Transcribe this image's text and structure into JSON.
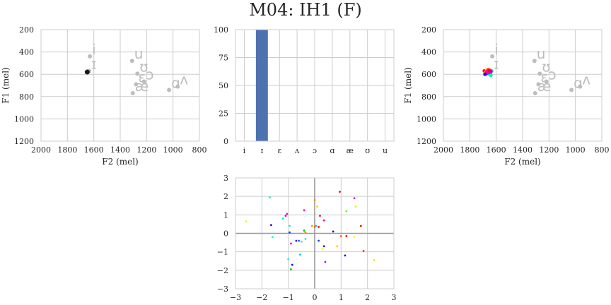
{
  "title": "M04: IH1 (F)",
  "colors": {
    "grid": "#cccccc",
    "frame": "#cccccc",
    "bar": "#4c72b0",
    "vowel": "#bdbdbd",
    "target": "#1a1a1a",
    "zero_line": "#999999"
  },
  "chart_data": [
    {
      "type": "scatter",
      "xlabel": "F2 (mel)",
      "ylabel": "F1 (mel)",
      "xlim": [
        2000,
        800
      ],
      "ylim": [
        1200,
        200
      ],
      "xticks": [
        "2000",
        "1800",
        "1600",
        "1400",
        "1200",
        "1000",
        "800"
      ],
      "yticks": [
        "200",
        "400",
        "600",
        "800",
        "1000",
        "1200"
      ],
      "grid": true,
      "vowels": [
        {
          "label": "i",
          "f2": 1630,
          "f1": 440
        },
        {
          "label": "ɪ",
          "f2": 1635,
          "f1": 570
        },
        {
          "label": "u",
          "f2": 1310,
          "f1": 480
        },
        {
          "label": "ʊ",
          "f2": 1270,
          "f1": 595
        },
        {
          "label": "ɛ",
          "f2": 1280,
          "f1": 690
        },
        {
          "label": "ɔ",
          "f2": 1220,
          "f1": 665
        },
        {
          "label": "æ",
          "f2": 1305,
          "f1": 770
        },
        {
          "label": "ɑ",
          "f2": 1030,
          "f1": 740
        },
        {
          "label": "ʌ",
          "f2": 965,
          "f1": 710
        }
      ],
      "target": [
        {
          "f2": 1650,
          "f1": 580
        }
      ]
    },
    {
      "type": "bar",
      "categories": [
        "i",
        "ɪ",
        "ɛ",
        "ʌ",
        "ɔ",
        "ɑ",
        "æ",
        "ʊ",
        "u"
      ],
      "values": [
        0,
        100,
        0,
        0,
        0,
        0,
        0,
        0,
        0
      ],
      "ylim": [
        0,
        100
      ],
      "yticks": [
        "0",
        "25",
        "50",
        "75",
        "100"
      ],
      "grid": true
    },
    {
      "type": "scatter",
      "xlabel": "F2 (mel)",
      "ylabel": "F1 (mel)",
      "xlim": [
        2000,
        800
      ],
      "ylim": [
        1200,
        200
      ],
      "xticks": [
        "2000",
        "1800",
        "1600",
        "1400",
        "1200",
        "1000",
        "800"
      ],
      "yticks": [
        "200",
        "400",
        "600",
        "800",
        "1000",
        "1200"
      ],
      "grid": true,
      "vowels": [
        {
          "label": "i",
          "f2": 1630,
          "f1": 440
        },
        {
          "label": "ɪ",
          "f2": 1635,
          "f1": 570
        },
        {
          "label": "u",
          "f2": 1310,
          "f1": 480
        },
        {
          "label": "ʊ",
          "f2": 1270,
          "f1": 595
        },
        {
          "label": "ɛ",
          "f2": 1280,
          "f1": 690
        },
        {
          "label": "ɔ",
          "f2": 1220,
          "f1": 665
        },
        {
          "label": "æ",
          "f2": 1305,
          "f1": 770
        },
        {
          "label": "ɑ",
          "f2": 1030,
          "f1": 740
        },
        {
          "label": "ʌ",
          "f2": 965,
          "f1": 710
        }
      ],
      "samples": [
        {
          "f2": 1690,
          "f1": 570,
          "color": "#ff0000"
        },
        {
          "f2": 1680,
          "f1": 580,
          "color": "#ff8800"
        },
        {
          "f2": 1670,
          "f1": 560,
          "color": "#ffcc00"
        },
        {
          "f2": 1660,
          "f1": 590,
          "color": "#00cc66"
        },
        {
          "f2": 1650,
          "f1": 600,
          "color": "#00ddee"
        },
        {
          "f2": 1640,
          "f1": 575,
          "color": "#0044ff"
        },
        {
          "f2": 1675,
          "f1": 595,
          "color": "#8800ff"
        },
        {
          "f2": 1665,
          "f1": 585,
          "color": "#ff00aa"
        },
        {
          "f2": 1655,
          "f1": 570,
          "color": "#ff0066"
        },
        {
          "f2": 1645,
          "f1": 590,
          "color": "#cc00ff"
        },
        {
          "f2": 1685,
          "f1": 600,
          "color": "#3300ff"
        },
        {
          "f2": 1660,
          "f1": 560,
          "color": "#ff3300"
        },
        {
          "f2": 1640,
          "f1": 610,
          "color": "#00ff99"
        },
        {
          "f2": 1670,
          "f1": 575,
          "color": "#ff0099"
        },
        {
          "f2": 1650,
          "f1": 565,
          "color": "#ff0033"
        }
      ]
    },
    {
      "type": "scatter",
      "xlim": [
        -3,
        3
      ],
      "ylim": [
        -3,
        3
      ],
      "xticks": [
        "−3",
        "−2",
        "−1",
        "0",
        "1",
        "2",
        "3"
      ],
      "yticks": [
        "−3",
        "−2",
        "−1",
        "0",
        "1",
        "2",
        "3"
      ],
      "grid": true,
      "points": [
        {
          "x": -2.6,
          "y": 0.65,
          "color": "#eeff00"
        },
        {
          "x": -1.7,
          "y": 1.95,
          "color": "#00ffcc"
        },
        {
          "x": -1.65,
          "y": 0.45,
          "color": "#0000ff"
        },
        {
          "x": -1.6,
          "y": -0.2,
          "color": "#00ffcc"
        },
        {
          "x": -1.2,
          "y": 0.8,
          "color": "#00ffcc"
        },
        {
          "x": -1.1,
          "y": 0.95,
          "color": "#cc00ff"
        },
        {
          "x": -1.05,
          "y": 1.05,
          "color": "#ff00aa"
        },
        {
          "x": -1.0,
          "y": -1.4,
          "color": "#00ffcc"
        },
        {
          "x": -0.95,
          "y": 0.05,
          "color": "#0044ff"
        },
        {
          "x": -0.95,
          "y": 0.4,
          "color": "#00ffcc"
        },
        {
          "x": -0.9,
          "y": -0.55,
          "color": "#cc00ff"
        },
        {
          "x": -0.9,
          "y": -1.95,
          "color": "#00cc00"
        },
        {
          "x": -0.85,
          "y": -1.7,
          "color": "#0000ff"
        },
        {
          "x": -0.7,
          "y": -0.4,
          "color": "#3300ff"
        },
        {
          "x": -0.6,
          "y": -0.4,
          "color": "#0066ff"
        },
        {
          "x": -0.55,
          "y": -1.15,
          "color": "#00ccff"
        },
        {
          "x": -0.5,
          "y": -0.45,
          "color": "#00ffcc"
        },
        {
          "x": -0.4,
          "y": 1.25,
          "color": "#ff0099"
        },
        {
          "x": -0.4,
          "y": 0.15,
          "color": "#00cc00"
        },
        {
          "x": -0.35,
          "y": -0.3,
          "color": "#00ffcc"
        },
        {
          "x": -0.35,
          "y": 0.05,
          "color": "#ff8800"
        },
        {
          "x": -0.1,
          "y": 0.4,
          "color": "#ccaa00"
        },
        {
          "x": 0.0,
          "y": 1.8,
          "color": "#ff8800"
        },
        {
          "x": 0.0,
          "y": 0.35,
          "color": "#ff6600"
        },
        {
          "x": 0.05,
          "y": 0.4,
          "color": "#00ccff"
        },
        {
          "x": 0.1,
          "y": 1.45,
          "color": "#ffcc00"
        },
        {
          "x": 0.15,
          "y": 0.35,
          "color": "#ff0000"
        },
        {
          "x": 0.15,
          "y": -0.4,
          "color": "#0044ff"
        },
        {
          "x": 0.2,
          "y": 0.95,
          "color": "#ff0066"
        },
        {
          "x": 0.3,
          "y": -0.85,
          "color": "#eeff00"
        },
        {
          "x": 0.35,
          "y": 0.7,
          "color": "#ff0066"
        },
        {
          "x": 0.35,
          "y": -0.7,
          "color": "#3300ff"
        },
        {
          "x": 0.4,
          "y": -1.55,
          "color": "#cc00ff"
        },
        {
          "x": 0.7,
          "y": 0.1,
          "color": "#0000ff"
        },
        {
          "x": 0.85,
          "y": -0.7,
          "color": "#ffcc00"
        },
        {
          "x": 0.95,
          "y": 2.25,
          "color": "#ff0000"
        },
        {
          "x": 1.0,
          "y": -0.15,
          "color": "#ff6600"
        },
        {
          "x": 1.15,
          "y": -1.2,
          "color": "#0000ff"
        },
        {
          "x": 1.2,
          "y": 1.2,
          "color": "#66ff00"
        },
        {
          "x": 1.2,
          "y": -0.15,
          "color": "#ff0000"
        },
        {
          "x": 1.5,
          "y": 1.9,
          "color": "#cc00ff"
        },
        {
          "x": 1.5,
          "y": -0.2,
          "color": "#eeff00"
        },
        {
          "x": 1.55,
          "y": 1.45,
          "color": "#ccff00"
        },
        {
          "x": 1.75,
          "y": 0.4,
          "color": "#ff0000"
        },
        {
          "x": 1.85,
          "y": -0.95,
          "color": "#ff3300"
        },
        {
          "x": 2.25,
          "y": -1.45,
          "color": "#ccff00"
        }
      ]
    }
  ]
}
